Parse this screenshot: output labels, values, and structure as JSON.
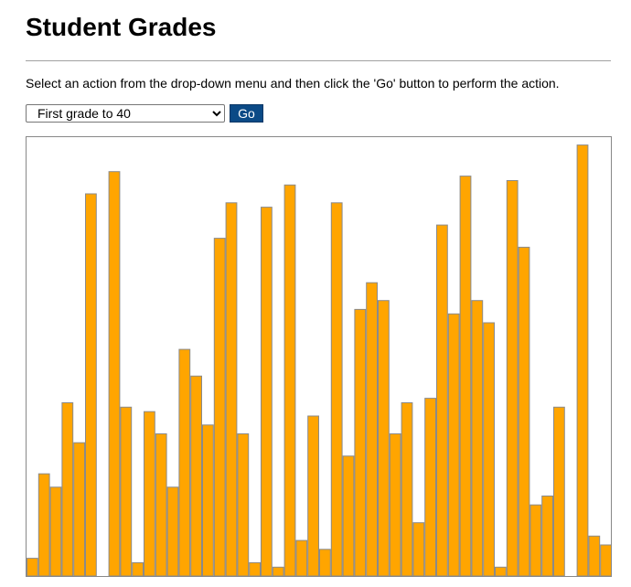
{
  "page": {
    "title": "Student Grades",
    "instructions": "Select an action from the drop-down menu and then click the 'Go' button to perform the action."
  },
  "controls": {
    "action_selected": "First grade to 40",
    "go_label": "Go"
  },
  "colors": {
    "bar_fill": "#ffa500",
    "bar_stroke": "#8a8a8a",
    "button_bg": "#0b4a86"
  },
  "chart_data": {
    "type": "bar",
    "title": "",
    "xlabel": "",
    "ylabel": "",
    "ylim": [
      0,
      100
    ],
    "grid": false,
    "legend": "none",
    "values": [
      4,
      23,
      20,
      39,
      30,
      86,
      0,
      91,
      38,
      3,
      37,
      32,
      20,
      51,
      45,
      34,
      76,
      84,
      32,
      3,
      83,
      2,
      88,
      8,
      36,
      6,
      84,
      27,
      60,
      66,
      62,
      32,
      39,
      12,
      40,
      79,
      59,
      90,
      62,
      57,
      2,
      89,
      74,
      16,
      18,
      38,
      0,
      97,
      9,
      7
    ]
  }
}
